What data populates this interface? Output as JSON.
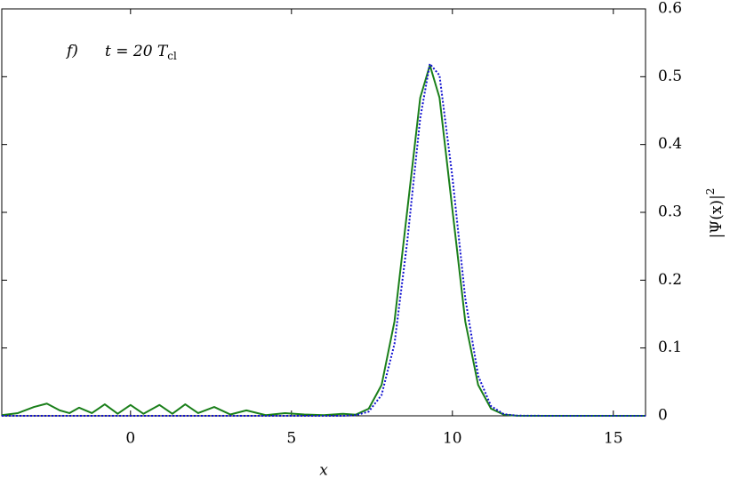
{
  "chart_data": {
    "type": "line",
    "annotation": {
      "label": "f)",
      "text": "t = 20 T",
      "subscript": "cl"
    },
    "x_label": "x",
    "y_label": {
      "text": "|Ψ(x)|",
      "superscript": "2"
    },
    "y_axis_side": "right",
    "x": [
      -4,
      -3.5,
      -3,
      -2.6,
      -2.2,
      -1.9,
      -1.6,
      -1.2,
      -0.8,
      -0.4,
      0,
      0.4,
      0.9,
      1.3,
      1.7,
      2.1,
      2.6,
      3.1,
      3.6,
      4.2,
      4.8,
      5.4,
      6,
      6.6,
      7,
      7.4,
      7.8,
      8.2,
      8.6,
      9,
      9.3,
      9.6,
      10,
      10.4,
      10.8,
      11.2,
      11.6,
      12,
      13,
      14,
      15,
      16
    ],
    "series": [
      {
        "color": "#1a7f1a",
        "style": "solid",
        "values": [
          0.001,
          0.004,
          0.013,
          0.018,
          0.008,
          0.004,
          0.012,
          0.004,
          0.017,
          0.003,
          0.016,
          0.003,
          0.016,
          0.003,
          0.017,
          0.004,
          0.013,
          0.002,
          0.008,
          0.001,
          0.004,
          0.002,
          0.001,
          0.003,
          0.0017,
          0.0105,
          0.0455,
          0.139,
          0.304,
          0.469,
          0.517,
          0.469,
          0.304,
          0.139,
          0.0455,
          0.0105,
          0.0017,
          0.0002,
          0,
          0,
          0,
          0
        ]
      },
      {
        "color": "#1010d0",
        "style": "dotted",
        "values": [
          0,
          0,
          0,
          0,
          0,
          0,
          0,
          0,
          0,
          0,
          0,
          0,
          0,
          0,
          0,
          0,
          0,
          0,
          0,
          0,
          0,
          0,
          0,
          0,
          0.0009,
          0.0062,
          0.0307,
          0.106,
          0.258,
          0.439,
          0.519,
          0.502,
          0.352,
          0.173,
          0.059,
          0.0143,
          0.0024,
          0.0003,
          0,
          0,
          0,
          0
        ]
      }
    ],
    "xlim": [
      -4,
      16
    ],
    "xticks": [
      0,
      5,
      10,
      15
    ],
    "ylim": [
      0,
      0.6
    ],
    "yticks": [
      0,
      0.1,
      0.2,
      0.3,
      0.4,
      0.5,
      0.6
    ],
    "grid": false
  }
}
